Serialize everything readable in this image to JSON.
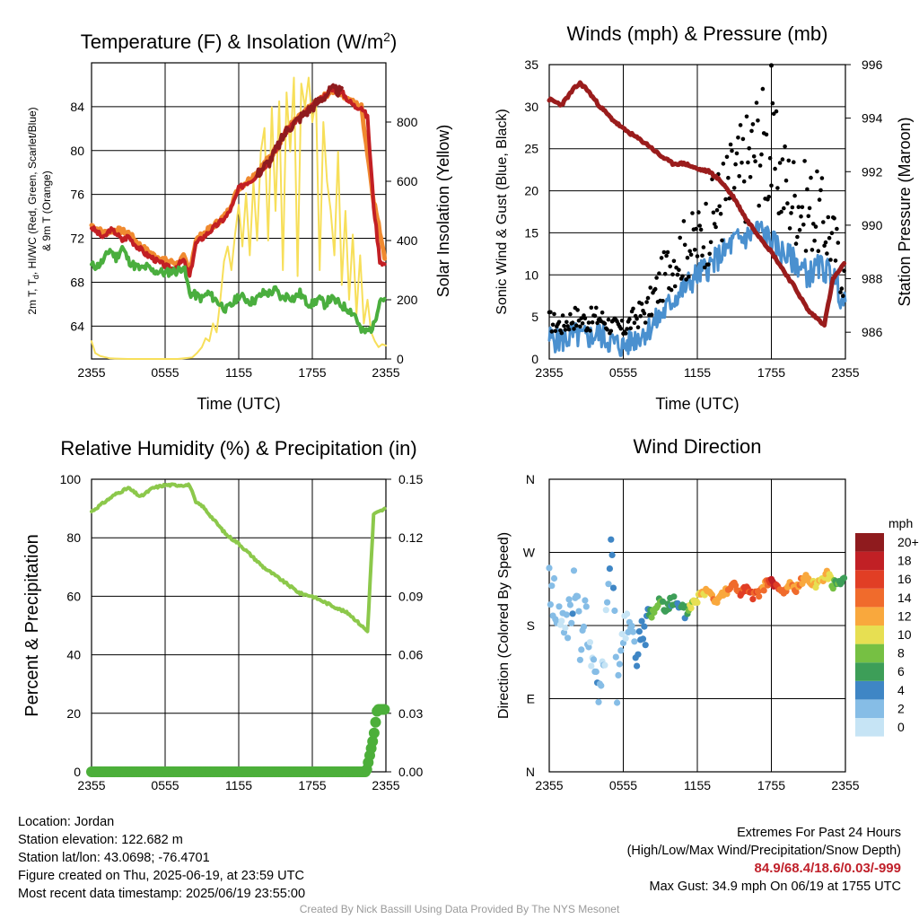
{
  "colors": {
    "temp": "#c21f24",
    "heat_index": "#d94a2a",
    "nine_m_temp": "#f08a30",
    "dewpoint": "#4aae3e",
    "insolation": "#f7df5a",
    "wind": "#4a90cf",
    "gust": "#000000",
    "pressure": "#9a1c1c",
    "rh": "#8cc84b",
    "precip": "#4caf3a"
  },
  "x_ticks": [
    "2355",
    "0555",
    "1155",
    "1755",
    "2355"
  ],
  "chart_data": [
    {
      "id": "temperature",
      "type": "line",
      "title_main": "Temperature (F) & Insolation (W/m",
      "title_sup": "2",
      "title_close": ")",
      "xlabel": "Time (UTC)",
      "ylabel_left_1": "2m T, T",
      "ylabel_left_sub": "d",
      "ylabel_left_2": ", HI/WC (Red, Green, Scarlet/Blue)",
      "ylabel_left_3": "& 9m T (Orange)",
      "ylabel_right": "Solar Insolation (Yellow)",
      "x_range_hours": [
        0,
        24
      ],
      "ylim_left": [
        61,
        88
      ],
      "ylim_right": [
        0,
        1000
      ],
      "y_ticks_left": [
        64,
        68,
        72,
        76,
        80,
        84
      ],
      "y_ticks_right": [
        0,
        200,
        400,
        600,
        800
      ],
      "series": [
        {
          "key": "temp_2m",
          "hours": [
            0,
            0.5,
            1,
            1.5,
            2,
            2.5,
            3,
            3.5,
            4,
            4.5,
            5,
            5.5,
            6,
            6.5,
            7,
            7.5,
            8,
            8.5,
            9,
            9.5,
            10,
            10.5,
            11,
            11.5,
            12,
            12.5,
            13,
            13.5,
            14,
            14.5,
            15,
            15.5,
            16,
            16.5,
            17,
            17.5,
            18,
            18.5,
            19,
            19.5,
            20,
            20.5,
            21,
            21.5,
            22,
            22.5,
            23,
            23.5,
            24
          ],
          "values": [
            73,
            72.5,
            72,
            72.8,
            72.5,
            71.8,
            72.2,
            71.5,
            71,
            70.5,
            70.2,
            69.8,
            69.5,
            69.2,
            69.5,
            70,
            68.5,
            71.5,
            72,
            72.5,
            73,
            73.5,
            74,
            75,
            76.5,
            77,
            77.3,
            77.8,
            78.5,
            79,
            80,
            81,
            82,
            82.5,
            83,
            83.5,
            84,
            84.5,
            85,
            85.5,
            85.5,
            85.2,
            84.5,
            84,
            84,
            83,
            75,
            70,
            69.5
          ]
        },
        {
          "key": "dewpoint",
          "hours": [
            0,
            0.5,
            1,
            1.5,
            2,
            2.5,
            3,
            3.5,
            4,
            4.5,
            5,
            5.5,
            6,
            6.5,
            7,
            7.5,
            8,
            8.5,
            9,
            9.5,
            10,
            10.5,
            11,
            11.5,
            12,
            12.5,
            13,
            13.5,
            14,
            14.5,
            15,
            15.5,
            16,
            16.5,
            17,
            17.5,
            18,
            18.5,
            19,
            19.5,
            20,
            20.5,
            21,
            21.5,
            22,
            22.5,
            23,
            23.5,
            24
          ],
          "values": [
            69.5,
            69.5,
            70,
            71,
            70.2,
            71.2,
            70,
            69.5,
            69.2,
            69.4,
            69,
            69,
            68.8,
            69,
            69,
            69.5,
            67,
            66.8,
            66.5,
            67,
            66.5,
            66,
            65.5,
            66,
            66.8,
            66.5,
            66.2,
            66.5,
            67,
            67,
            67.3,
            66.5,
            66.8,
            66.5,
            67,
            66.2,
            66,
            66.5,
            66,
            66.5,
            66.2,
            65.8,
            65.5,
            65,
            63.5,
            63.5,
            64,
            66.5,
            66.5
          ]
        },
        {
          "key": "nine_m_temp",
          "hours": [
            0,
            1,
            2,
            3,
            4,
            5,
            6,
            7,
            7.5,
            8,
            8.5,
            9,
            10,
            11,
            12,
            13,
            14,
            15,
            16,
            17,
            18,
            19,
            20,
            21,
            22,
            23,
            24
          ],
          "values": [
            73.2,
            72.5,
            72.8,
            72.5,
            71.3,
            70.5,
            70,
            69.7,
            70.3,
            69,
            71.8,
            72.3,
            73.2,
            74.2,
            76.6,
            77.5,
            78.7,
            80.1,
            82.1,
            83.1,
            84.1,
            85,
            85.6,
            84.6,
            84,
            75.5,
            69.8
          ]
        },
        {
          "key": "insolation",
          "hours": [
            0,
            0.3,
            0.7,
            1.5,
            3,
            5,
            7,
            8.2,
            8.6,
            9.0,
            9.3,
            9.6,
            9.9,
            10.2,
            10.5,
            10.8,
            11.1,
            11.4,
            11.7,
            12.0,
            12.3,
            12.6,
            12.9,
            13.2,
            13.5,
            13.8,
            14.1,
            14.4,
            14.7,
            15.0,
            15.3,
            15.6,
            15.9,
            16.2,
            16.5,
            16.8,
            17.1,
            17.4,
            17.7,
            18.0,
            18.3,
            18.6,
            18.9,
            19.2,
            19.5,
            19.8,
            20.1,
            20.4,
            20.7,
            21.0,
            21.3,
            21.6,
            21.9,
            22.2,
            22.5,
            22.8,
            23.1,
            23.4,
            23.7,
            24
          ],
          "values": [
            60,
            20,
            10,
            2,
            0,
            0,
            0,
            5,
            20,
            40,
            70,
            60,
            120,
            90,
            200,
            330,
            380,
            300,
            420,
            520,
            380,
            560,
            350,
            600,
            400,
            700,
            780,
            400,
            850,
            500,
            870,
            300,
            900,
            700,
            950,
            280,
            930,
            850,
            950,
            800,
            880,
            300,
            800,
            600,
            500,
            350,
            700,
            250,
            500,
            200,
            420,
            150,
            350,
            120,
            200,
            90,
            60,
            40,
            50,
            45
          ]
        }
      ]
    },
    {
      "id": "winds",
      "type": "line",
      "title": "Winds (mph) & Pressure (mb)",
      "xlabel": "Time (UTC)",
      "ylabel_left": "Sonic Wind & Gust (Blue, Black)",
      "ylabel_right": "Station Pressure (Maroon)",
      "x_range_hours": [
        0,
        24
      ],
      "ylim_left": [
        0,
        35
      ],
      "ylim_right": [
        985,
        996
      ],
      "y_ticks_left": [
        0,
        5,
        10,
        15,
        20,
        25,
        30,
        35
      ],
      "y_ticks_right": [
        986,
        988,
        990,
        992,
        994,
        996
      ],
      "series": [
        {
          "key": "sonic_wind",
          "hours": [
            0,
            1,
            2,
            3,
            4,
            5,
            6,
            7,
            8,
            9,
            10,
            11,
            12,
            13,
            14,
            15,
            16,
            17,
            18,
            19,
            20,
            21,
            22,
            23,
            24
          ],
          "values": [
            2.5,
            2.2,
            2.8,
            2.5,
            3,
            2,
            1.5,
            2.5,
            3.5,
            5,
            7,
            8.5,
            10,
            11,
            12.5,
            14,
            14.5,
            15.5,
            14,
            12.5,
            11.5,
            10,
            11,
            10,
            6
          ]
        },
        {
          "key": "gust",
          "hours": [
            0,
            1,
            2,
            3,
            4,
            5,
            6,
            7,
            8,
            9,
            10,
            11,
            12,
            13,
            14,
            15,
            16,
            17,
            18,
            19,
            20,
            21,
            22,
            23,
            24
          ],
          "values": [
            4.5,
            4,
            5,
            4.5,
            5,
            4,
            3.5,
            5,
            6,
            9,
            12,
            13,
            14,
            16,
            19,
            21,
            23,
            26,
            24,
            21,
            19,
            18,
            17,
            14,
            9
          ]
        },
        {
          "key": "pressure",
          "hours": [
            0,
            0.5,
            1,
            2,
            2.5,
            3,
            4,
            5,
            6,
            7,
            8,
            9,
            10,
            11,
            12,
            13,
            14,
            15,
            16,
            17,
            18,
            19,
            20,
            21,
            22,
            22.3,
            23,
            24
          ],
          "values": [
            994.7,
            994.6,
            994.5,
            995.1,
            995.3,
            995.1,
            994.5,
            994.0,
            993.6,
            993.3,
            993.0,
            992.6,
            992.3,
            992.3,
            992.1,
            992.0,
            991.6,
            991.0,
            990.2,
            989.6,
            989.0,
            988.3,
            987.6,
            986.8,
            986.4,
            986.3,
            988.0,
            988.6
          ]
        }
      ],
      "max_gust_point": {
        "hour": 18,
        "value": 34.9
      }
    },
    {
      "id": "humidity",
      "type": "line",
      "title": "Relative Humidity (%) & Precipitation (in)",
      "ylabel_left": "Percent & Precipitation",
      "x_range_hours": [
        0,
        24
      ],
      "ylim_left": [
        0,
        100
      ],
      "ylim_right": [
        0,
        0.15
      ],
      "y_ticks_left": [
        0,
        20,
        40,
        60,
        80,
        100
      ],
      "y_ticks_right": [
        "0.00",
        "0.03",
        "0.06",
        "0.09",
        "0.12",
        "0.15"
      ],
      "series": [
        {
          "key": "rh",
          "hours": [
            0,
            1,
            2,
            3,
            4,
            5,
            6,
            7,
            8,
            8.5,
            9,
            10,
            11,
            12,
            13,
            14,
            15,
            16,
            17,
            18,
            19,
            20,
            21,
            22,
            22.5,
            23,
            24
          ],
          "values": [
            89,
            92,
            95,
            97,
            94,
            97,
            98,
            98,
            98,
            92,
            91,
            86,
            81,
            78,
            74,
            70,
            67,
            64,
            61,
            60,
            58,
            56,
            54,
            50,
            48,
            88,
            90
          ]
        },
        {
          "key": "precip",
          "hours": [
            0,
            22.4,
            22.6,
            22.8,
            23.0,
            23.3,
            24
          ],
          "values": [
            0,
            0,
            0.006,
            0.012,
            0.018,
            0.032,
            0.032
          ]
        }
      ]
    },
    {
      "id": "wind_direction",
      "type": "scatter",
      "title": "Wind Direction",
      "ylabel_left": "Direction (Colored By Speed)",
      "x_range_hours": [
        0,
        24
      ],
      "ylim_left": [
        0,
        360
      ],
      "y_ticks_left": [
        "N",
        "E",
        "S",
        "W",
        "N"
      ],
      "legend_title": "mph",
      "legend_labels": [
        "0",
        "2",
        "4",
        "6",
        "8",
        "10",
        "12",
        "14",
        "16",
        "18",
        "20+"
      ],
      "legend_colors": [
        "#c6e4f5",
        "#86bde6",
        "#3f86c5",
        "#3d9e58",
        "#76c043",
        "#e7df52",
        "#f9a83d",
        "#f06b2c",
        "#e13e25",
        "#c12025",
        "#8f1b1e"
      ],
      "series": [
        {
          "key": "direction",
          "hours": [
            0,
            0.5,
            1,
            1.5,
            2,
            2.5,
            3,
            3.5,
            4,
            4.5,
            5,
            5.5,
            6,
            6.5,
            7,
            7.5,
            8,
            8.5,
            9,
            9.5,
            10,
            10.5,
            11,
            11.5,
            12,
            12.5,
            13,
            13.5,
            14,
            14.5,
            15,
            15.5,
            16,
            16.5,
            17,
            17.5,
            18,
            18.5,
            19,
            19.5,
            20,
            20.5,
            21,
            21.5,
            22,
            22.5,
            23,
            23.5,
            24
          ],
          "values": [
            230,
            210,
            175,
            190,
            225,
            160,
            195,
            120,
            95,
            150,
            275,
            115,
            165,
            210,
            125,
            160,
            190,
            200,
            210,
            205,
            210,
            200,
            195,
            205,
            215,
            220,
            225,
            210,
            220,
            225,
            230,
            220,
            225,
            215,
            220,
            230,
            235,
            225,
            220,
            230,
            225,
            235,
            240,
            230,
            235,
            245,
            230,
            235,
            240
          ],
          "speeds": [
            1.5,
            2.5,
            1,
            2,
            3,
            1.5,
            2,
            0.5,
            2.5,
            1,
            3.5,
            2,
            1,
            1.5,
            3,
            3.5,
            4.5,
            8,
            7,
            6,
            5,
            4,
            5.5,
            9,
            10,
            11,
            12,
            13,
            12,
            13,
            14,
            15,
            16,
            15,
            14,
            13,
            17,
            16,
            14,
            12,
            13,
            12,
            12,
            11,
            10,
            11,
            8,
            6,
            6
          ]
        }
      ]
    }
  ],
  "info_left": {
    "location": "Location: Jordan",
    "elevation": "Station elevation: 122.682 m",
    "latlon": "Station lat/lon: 43.0698; -76.4701",
    "created": "Figure created on Thu, 2025-06-19, at 23:59 UTC",
    "recent": "Most recent data timestamp: 2025/06/19 23:55:00"
  },
  "info_right": {
    "extremes_title": "Extremes For Past 24 Hours",
    "extremes_legend": "(High/Low/Max Wind/Precipitation/Snow Depth)",
    "extremes_values": "84.9/68.4/18.6/0.03/-999",
    "max_gust": "Max Gust: 34.9 mph On 06/19 at 1755 UTC"
  },
  "credit": "Created By Nick Bassill Using Data Provided By The NYS Mesonet"
}
